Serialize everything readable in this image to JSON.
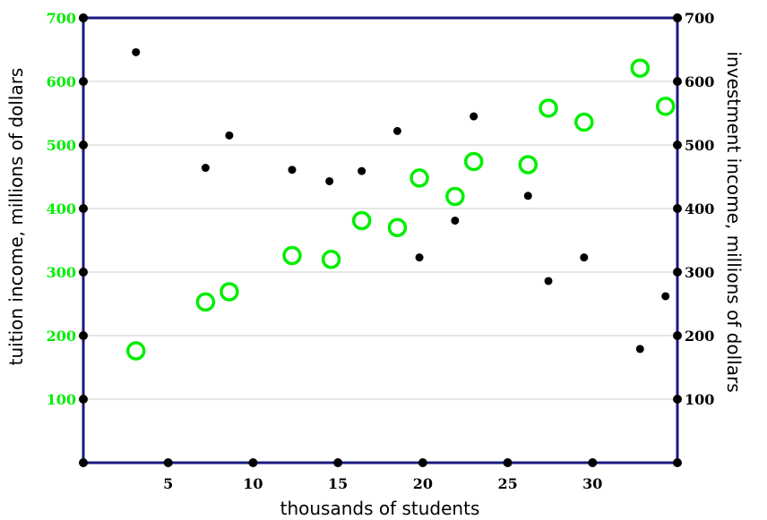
{
  "chart_data": {
    "type": "scatter",
    "title": "",
    "xlabel": "thousands of students",
    "ylabel_left": "tuition income, millions of dollars",
    "ylabel_right": "investment income, millions of dollars",
    "xlim": [
      0,
      35
    ],
    "ylim": [
      0,
      700
    ],
    "x_ticks": [
      "5",
      "10",
      "15",
      "20",
      "25",
      "30"
    ],
    "y_ticks_left": [
      "100",
      "200",
      "300",
      "400",
      "500",
      "600",
      "700"
    ],
    "y_ticks_right": [
      "100",
      "200",
      "300",
      "400",
      "500",
      "600",
      "700"
    ],
    "grid": "horizontal",
    "colors": {
      "frame": "#1a1a80",
      "grid": "#cccccc",
      "left_axis_text": "#00ee00",
      "tuition": "#00ee00",
      "investment": "#000000"
    },
    "series": [
      {
        "marker": "open-circle",
        "axis": "left",
        "color": "#00ee00",
        "points": [
          [
            3.1,
            176
          ],
          [
            7.2,
            253
          ],
          [
            8.6,
            269
          ],
          [
            12.3,
            326
          ],
          [
            14.6,
            320
          ],
          [
            16.4,
            381
          ],
          [
            18.5,
            370
          ],
          [
            19.8,
            448
          ],
          [
            21.9,
            419
          ],
          [
            23.0,
            474
          ],
          [
            26.2,
            469
          ],
          [
            27.4,
            558
          ],
          [
            29.5,
            536
          ],
          [
            32.8,
            621
          ],
          [
            34.3,
            561
          ]
        ]
      },
      {
        "marker": "filled-dot",
        "axis": "right",
        "color": "#000000",
        "points": [
          [
            3.1,
            646
          ],
          [
            7.2,
            464
          ],
          [
            8.6,
            515
          ],
          [
            12.3,
            461
          ],
          [
            14.5,
            443
          ],
          [
            16.4,
            459
          ],
          [
            18.5,
            522
          ],
          [
            19.8,
            323
          ],
          [
            21.9,
            381
          ],
          [
            23.0,
            545
          ],
          [
            26.2,
            420
          ],
          [
            27.4,
            286
          ],
          [
            29.5,
            323
          ],
          [
            32.8,
            179
          ],
          [
            34.3,
            262
          ]
        ]
      }
    ]
  }
}
